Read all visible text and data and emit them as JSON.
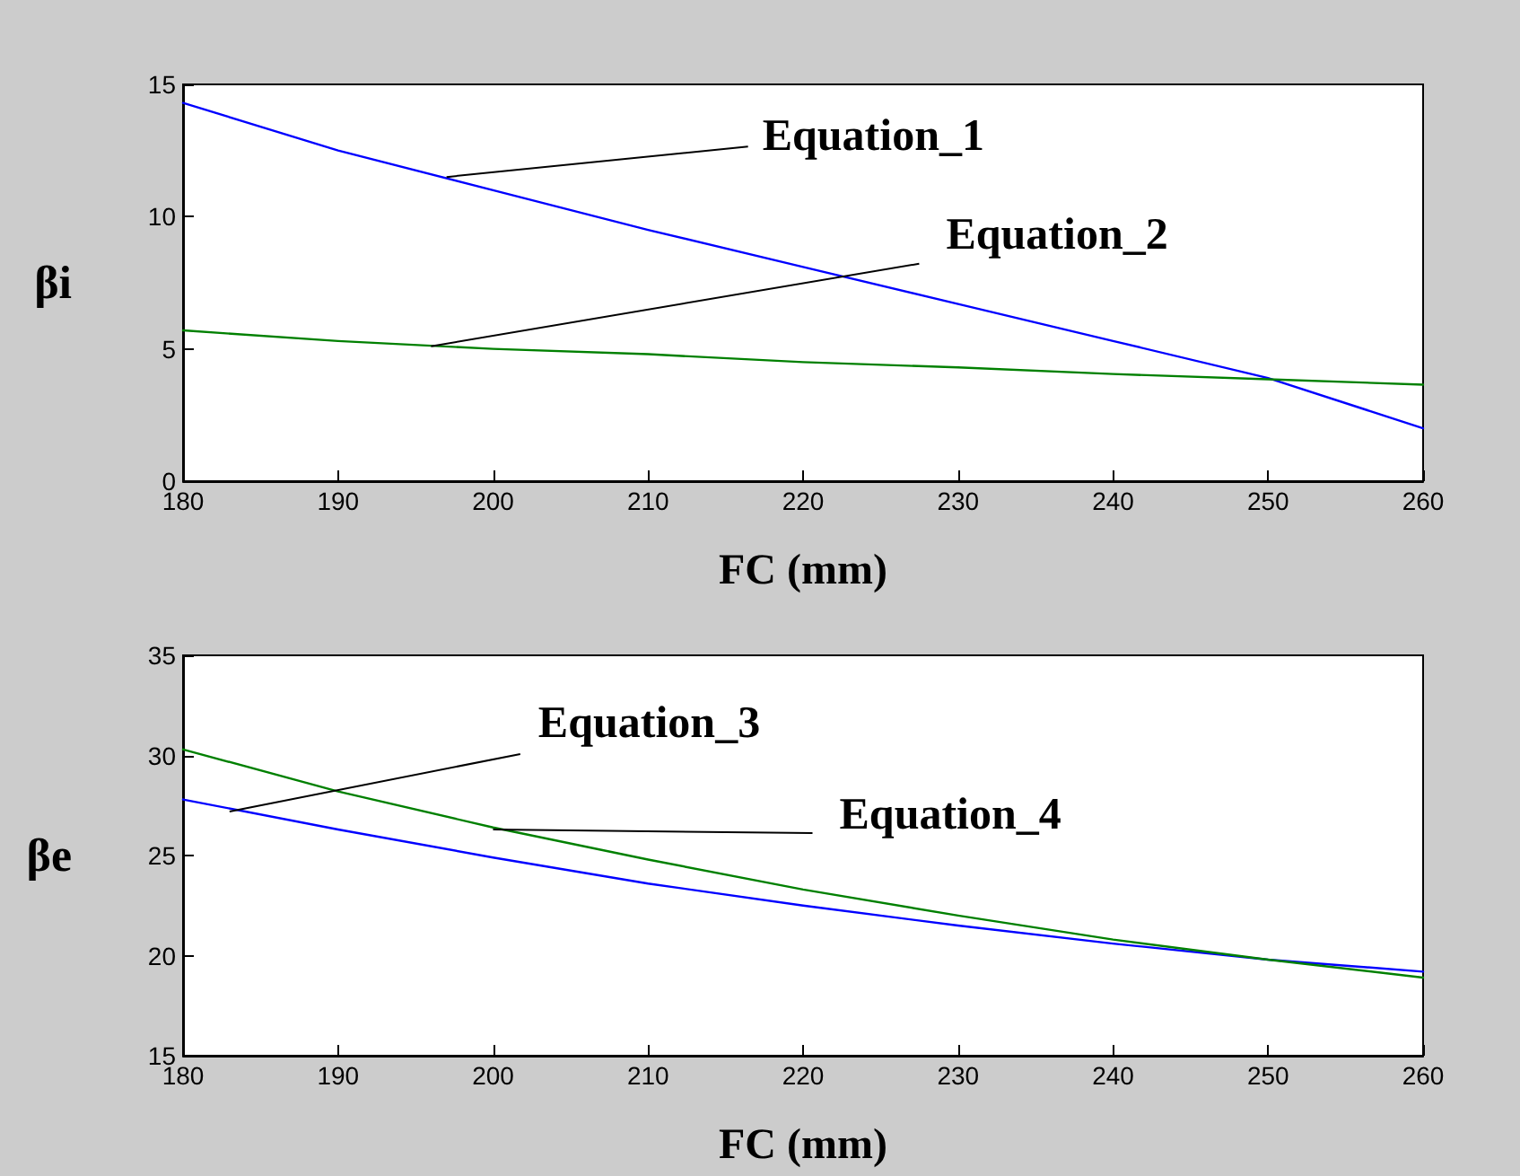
{
  "chart_data": [
    {
      "type": "line",
      "ylabel": "βi",
      "xlabel": "FC (mm)",
      "x": [
        180,
        190,
        200,
        210,
        220,
        230,
        240,
        250,
        260
      ],
      "series": [
        {
          "color": "#0000ff",
          "values": [
            14.3,
            12.5,
            11.0,
            9.5,
            8.1,
            6.7,
            5.3,
            3.9,
            2.0
          ]
        },
        {
          "color": "#008000",
          "values": [
            5.7,
            5.3,
            5.0,
            4.8,
            4.5,
            4.3,
            4.05,
            3.85,
            3.65
          ]
        }
      ],
      "xlim": [
        180,
        260
      ],
      "xticks": [
        180,
        190,
        200,
        210,
        220,
        230,
        240,
        250,
        260
      ],
      "ylim": [
        0,
        15
      ],
      "yticks": [
        0,
        5,
        10,
        15
      ],
      "grid": false,
      "marker": "none",
      "line_style": "solid",
      "annotations": [
        {
          "text": "Equation_1",
          "x": 197,
          "y": 11.5
        },
        {
          "text": "Equation_2",
          "x": 196,
          "y": 5.1
        }
      ]
    },
    {
      "type": "line",
      "ylabel": "βe",
      "xlabel": "FC (mm)",
      "x": [
        180,
        190,
        200,
        210,
        220,
        230,
        240,
        250,
        260
      ],
      "series": [
        {
          "color": "#0000ff",
          "values": [
            27.8,
            26.3,
            24.9,
            23.6,
            22.5,
            21.5,
            20.6,
            19.8,
            19.2
          ]
        },
        {
          "color": "#008000",
          "values": [
            30.3,
            28.2,
            26.4,
            24.8,
            23.3,
            22.0,
            20.8,
            19.8,
            18.9
          ]
        }
      ],
      "xlim": [
        180,
        260
      ],
      "xticks": [
        180,
        190,
        200,
        210,
        220,
        230,
        240,
        250,
        260
      ],
      "ylim": [
        15,
        35
      ],
      "yticks": [
        15,
        20,
        25,
        30,
        35
      ],
      "grid": false,
      "marker": "none",
      "line_style": "solid",
      "annotations": [
        {
          "text": "Equation_3",
          "x": 183,
          "y": 27.2
        },
        {
          "text": "Equation_4",
          "x": 200,
          "y": 26.3
        }
      ]
    }
  ]
}
